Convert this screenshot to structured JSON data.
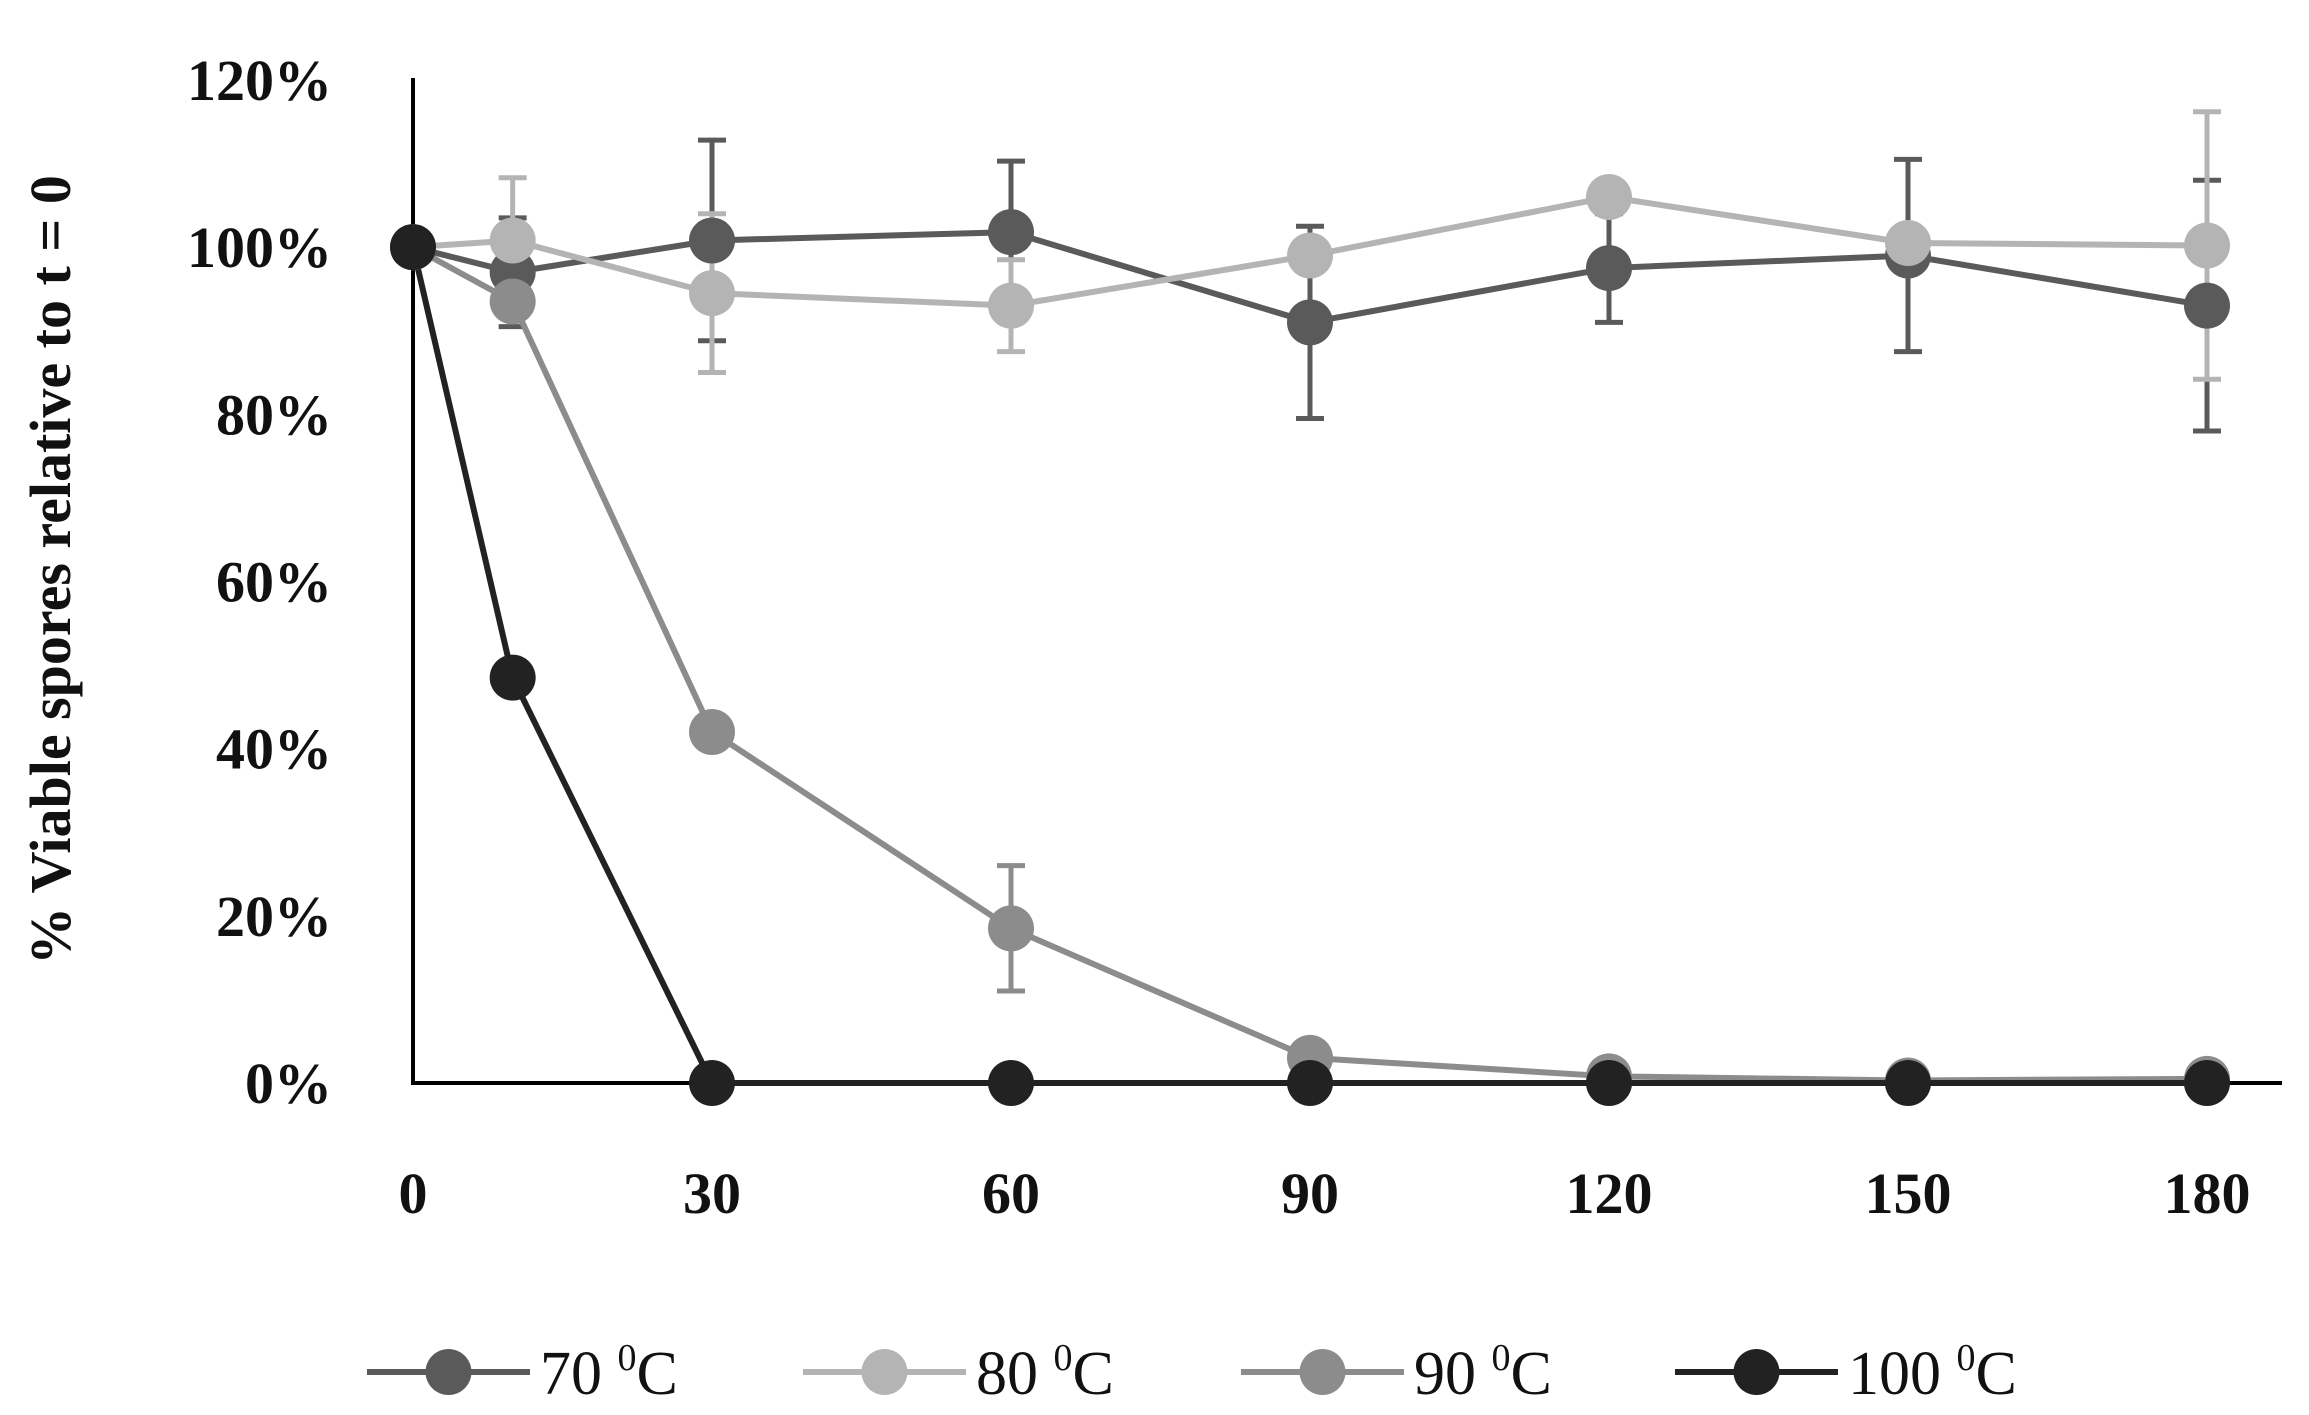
{
  "chart_data": {
    "type": "line",
    "title": "",
    "xlabel": "",
    "ylabel": "% Viable spores relative to t = 0",
    "x": [
      0,
      10,
      30,
      60,
      90,
      120,
      150,
      180
    ],
    "x_ticks": [
      0,
      30,
      60,
      90,
      120,
      150,
      180
    ],
    "x_tick_labels": [
      "0",
      "30",
      "60",
      "90",
      "120",
      "150",
      "180"
    ],
    "y_ticks": [
      0,
      20,
      40,
      60,
      80,
      100,
      120
    ],
    "y_tick_labels": [
      "0%",
      "20%",
      "40%",
      "60%",
      "80%",
      "100%",
      "120%"
    ],
    "xlim": [
      0,
      180
    ],
    "ylim": [
      0,
      120
    ],
    "grid": false,
    "legend_position": "bottom",
    "series": [
      {
        "name": "70 ⁰C",
        "legend_main": "70 ",
        "legend_sup": "0",
        "legend_unit": "C",
        "color": "#5a5a5a",
        "values": [
          100,
          97,
          100.8,
          101.8,
          91,
          97.5,
          99,
          93
        ],
        "errors": [
          0,
          6.5,
          12,
          8.5,
          11.5,
          6.5,
          11.5,
          15
        ]
      },
      {
        "name": "80 ⁰C",
        "legend_main": "80 ",
        "legend_sup": "0",
        "legend_unit": "C",
        "color": "#b4b4b4",
        "values": [
          100,
          100.8,
          94.5,
          93,
          99,
          106,
          100.5,
          100.2
        ],
        "errors": [
          0,
          7.5,
          9.5,
          5.5,
          0,
          0,
          0,
          16
        ]
      },
      {
        "name": "90 ⁰C",
        "legend_main": "90 ",
        "legend_sup": "0",
        "legend_unit": "C",
        "color": "#8c8c8c",
        "values": [
          100,
          93.5,
          42,
          18.5,
          3,
          0.8,
          0.3,
          0.5
        ],
        "errors": [
          0,
          0,
          0,
          7.5,
          0,
          0,
          0,
          0
        ]
      },
      {
        "name": "100 ⁰C",
        "legend_main": "100 ",
        "legend_sup": "0",
        "legend_unit": "C",
        "color": "#222222",
        "values": [
          100,
          48.5,
          0,
          0,
          0,
          0,
          0,
          0
        ],
        "errors": [
          0,
          0,
          0,
          0,
          0,
          0,
          0,
          0
        ]
      }
    ]
  }
}
